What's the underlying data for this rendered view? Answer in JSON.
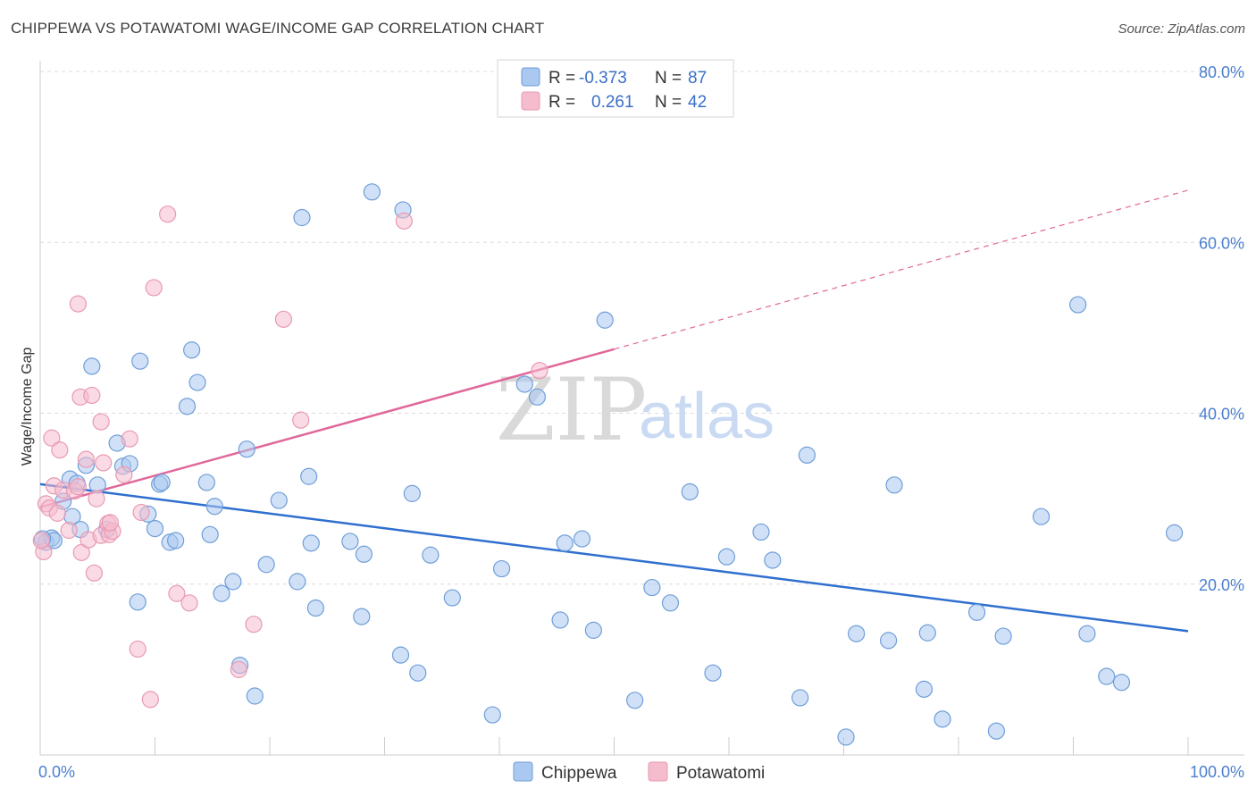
{
  "header": {
    "title": "CHIPPEWA VS POTAWATOMI WAGE/INCOME GAP CORRELATION CHART",
    "source": "Source: ZipAtlas.com"
  },
  "watermark": {
    "zip": "ZIP",
    "atlas": "atlas"
  },
  "legend_top": [
    {
      "r_label": "R =",
      "r_value": "-0.373",
      "n_label": "N =",
      "n_value": "87",
      "color": "#aac8f0"
    },
    {
      "r_label": "R =",
      "r_value": "0.261",
      "n_label": "N =",
      "n_value": "42",
      "color": "#f5bccd"
    }
  ],
  "chart_data": {
    "type": "scatter",
    "title": "CHIPPEWA VS POTAWATOMI WAGE/INCOME GAP CORRELATION CHART",
    "xlabel": "",
    "ylabel": "Wage/Income Gap",
    "xlim": [
      0,
      100
    ],
    "ylim": [
      0,
      85
    ],
    "x_tick_labels": [
      {
        "value": 0,
        "label": "0.0%"
      },
      {
        "value": 100,
        "label": "100.0%"
      }
    ],
    "y_tick_labels": [
      {
        "value": 20,
        "label": "20.0%"
      },
      {
        "value": 40,
        "label": "40.0%"
      },
      {
        "value": 60,
        "label": "60.0%"
      },
      {
        "value": 80,
        "label": "80.0%"
      }
    ],
    "grid": true,
    "legend_position": "bottom-center",
    "series": [
      {
        "name": "Chippewa",
        "color": "#aac8f0",
        "stroke": "#6f9ed8",
        "line_color": "#2f6fcf",
        "trend": {
          "x0": 0,
          "y0": 31.7,
          "x1": 100,
          "y1": 14.5
        },
        "points": [
          [
            0.5,
            24.9
          ],
          [
            1.0,
            25.4
          ],
          [
            1.2,
            25.1
          ],
          [
            2.0,
            29.7
          ],
          [
            2.6,
            32.3
          ],
          [
            2.8,
            27.9
          ],
          [
            3.2,
            31.8
          ],
          [
            3.5,
            26.4
          ],
          [
            4.0,
            33.9
          ],
          [
            4.5,
            45.5
          ],
          [
            5.0,
            31.6
          ],
          [
            5.8,
            26.4
          ],
          [
            6.7,
            36.5
          ],
          [
            7.2,
            33.8
          ],
          [
            7.8,
            34.1
          ],
          [
            8.5,
            17.9
          ],
          [
            8.7,
            46.1
          ],
          [
            9.4,
            28.2
          ],
          [
            10.0,
            26.5
          ],
          [
            10.4,
            31.7
          ],
          [
            10.6,
            31.9
          ],
          [
            11.3,
            24.9
          ],
          [
            11.8,
            25.1
          ],
          [
            12.8,
            40.8
          ],
          [
            13.2,
            47.4
          ],
          [
            13.7,
            43.6
          ],
          [
            14.5,
            31.9
          ],
          [
            14.8,
            25.8
          ],
          [
            15.2,
            29.1
          ],
          [
            15.8,
            18.9
          ],
          [
            16.8,
            20.3
          ],
          [
            17.4,
            10.5
          ],
          [
            18.0,
            35.8
          ],
          [
            18.7,
            6.9
          ],
          [
            19.7,
            22.3
          ],
          [
            20.8,
            29.8
          ],
          [
            22.4,
            20.3
          ],
          [
            22.8,
            62.9
          ],
          [
            23.4,
            32.6
          ],
          [
            23.6,
            24.8
          ],
          [
            24.0,
            17.2
          ],
          [
            27.0,
            25.0
          ],
          [
            28.0,
            16.2
          ],
          [
            28.2,
            23.5
          ],
          [
            28.9,
            65.9
          ],
          [
            31.4,
            11.7
          ],
          [
            31.6,
            63.8
          ],
          [
            32.4,
            30.6
          ],
          [
            32.9,
            9.6
          ],
          [
            34.0,
            23.4
          ],
          [
            35.9,
            18.4
          ],
          [
            39.4,
            4.7
          ],
          [
            40.2,
            21.8
          ],
          [
            42.2,
            43.4
          ],
          [
            43.3,
            41.9
          ],
          [
            45.3,
            15.8
          ],
          [
            45.7,
            24.8
          ],
          [
            47.2,
            25.3
          ],
          [
            48.2,
            14.6
          ],
          [
            49.2,
            50.9
          ],
          [
            51.8,
            6.4
          ],
          [
            53.3,
            19.6
          ],
          [
            54.9,
            17.8
          ],
          [
            56.6,
            30.8
          ],
          [
            58.6,
            9.6
          ],
          [
            59.8,
            23.2
          ],
          [
            62.8,
            26.1
          ],
          [
            63.8,
            22.8
          ],
          [
            66.2,
            6.7
          ],
          [
            66.8,
            35.1
          ],
          [
            70.2,
            2.1
          ],
          [
            71.1,
            14.2
          ],
          [
            73.9,
            13.4
          ],
          [
            74.4,
            31.6
          ],
          [
            77.0,
            7.7
          ],
          [
            77.3,
            14.3
          ],
          [
            78.6,
            4.2
          ],
          [
            81.6,
            16.7
          ],
          [
            83.3,
            2.8
          ],
          [
            83.9,
            13.9
          ],
          [
            87.2,
            27.9
          ],
          [
            90.4,
            52.7
          ],
          [
            91.2,
            14.2
          ],
          [
            92.9,
            9.2
          ],
          [
            94.2,
            8.5
          ],
          [
            98.8,
            26.0
          ],
          [
            0.2,
            25.3
          ]
        ]
      },
      {
        "name": "Potawatomi",
        "color": "#f5bccd",
        "stroke": "#e89ab2",
        "line_color": "#e0679a",
        "trend": {
          "x0": 0,
          "y0": 29.0,
          "x1": 50,
          "y1": 47.5
        },
        "trend_dashed": {
          "x0": 50,
          "y0": 47.5,
          "x1": 100,
          "y1": 66.1
        },
        "points": [
          [
            0.3,
            23.8
          ],
          [
            0.5,
            29.4
          ],
          [
            0.8,
            28.9
          ],
          [
            1.0,
            37.1
          ],
          [
            1.2,
            31.5
          ],
          [
            1.5,
            28.3
          ],
          [
            1.7,
            35.7
          ],
          [
            2.0,
            31.0
          ],
          [
            2.5,
            26.3
          ],
          [
            3.0,
            30.9
          ],
          [
            3.3,
            31.4
          ],
          [
            3.6,
            23.7
          ],
          [
            3.3,
            52.8
          ],
          [
            3.5,
            41.9
          ],
          [
            4.2,
            25.2
          ],
          [
            4.0,
            34.6
          ],
          [
            4.5,
            42.1
          ],
          [
            4.7,
            21.3
          ],
          [
            4.9,
            30.0
          ],
          [
            5.3,
            25.7
          ],
          [
            5.3,
            39.0
          ],
          [
            5.5,
            34.2
          ],
          [
            5.9,
            27.1
          ],
          [
            6.0,
            25.8
          ],
          [
            6.3,
            26.2
          ],
          [
            6.1,
            27.2
          ],
          [
            7.3,
            32.8
          ],
          [
            7.8,
            37.0
          ],
          [
            8.5,
            12.4
          ],
          [
            8.8,
            28.4
          ],
          [
            9.6,
            6.5
          ],
          [
            9.9,
            54.7
          ],
          [
            11.1,
            63.3
          ],
          [
            11.9,
            18.9
          ],
          [
            13.0,
            17.8
          ],
          [
            17.3,
            10.0
          ],
          [
            18.6,
            15.3
          ],
          [
            21.2,
            51.0
          ],
          [
            22.7,
            39.2
          ],
          [
            31.7,
            62.5
          ],
          [
            43.5,
            45.0
          ],
          [
            0.1,
            25.1
          ]
        ]
      }
    ]
  },
  "legend_bottom": [
    {
      "label": "Chippewa",
      "color": "#aac8f0"
    },
    {
      "label": "Potawatomi",
      "color": "#f5bccd"
    }
  ]
}
